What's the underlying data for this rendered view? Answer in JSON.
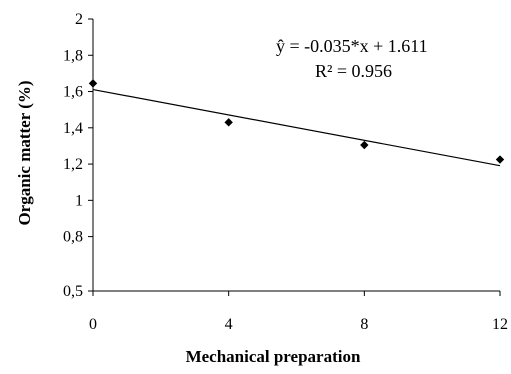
{
  "chart_data": {
    "type": "scatter",
    "title": "",
    "xlabel": "Mechanical preparation",
    "ylabel": "Organic matter (%)",
    "xlim": [
      0,
      12
    ],
    "ylim": [
      0.5,
      2
    ],
    "x_ticks": [
      0,
      4,
      8,
      12
    ],
    "x_tick_labels": [
      "0",
      "4",
      "8",
      "12"
    ],
    "y_ticks": [
      0.5,
      0.8,
      1,
      1.2,
      1.4,
      1.6,
      1.8,
      2
    ],
    "y_tick_labels": [
      "0,5",
      "0,8",
      "1",
      "1,2",
      "1,4",
      "1,6",
      "1,8",
      "2"
    ],
    "grid": false,
    "legend": "none",
    "points": [
      {
        "x": 0,
        "y": 1.645
      },
      {
        "x": 4,
        "y": 1.43
      },
      {
        "x": 8,
        "y": 1.305
      },
      {
        "x": 12,
        "y": 1.225
      }
    ],
    "trendline": {
      "slope": -0.035,
      "intercept": 1.611,
      "x_range": [
        0,
        12
      ],
      "equation_label": "ŷ = -0.035*x + 1.611",
      "r2_label": "R² = 0.956"
    },
    "colors": {
      "markers": "#000000",
      "line": "#000000",
      "axis": "#000000"
    }
  }
}
